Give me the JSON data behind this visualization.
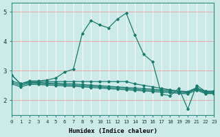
{
  "xlabel": "Humidex (Indice chaleur)",
  "bg_color": "#cceae7",
  "line_color": "#1a7a6e",
  "xlim": [
    0,
    23
  ],
  "ylim": [
    1.5,
    5.3
  ],
  "yticks": [
    2,
    3,
    4,
    5
  ],
  "xticks": [
    0,
    1,
    2,
    3,
    4,
    5,
    6,
    7,
    8,
    9,
    10,
    11,
    12,
    13,
    14,
    15,
    16,
    17,
    18,
    19,
    20,
    21,
    22,
    23
  ],
  "lines": [
    {
      "x": [
        0,
        1,
        2,
        3,
        4,
        5,
        6,
        7,
        8,
        9,
        10,
        11,
        12,
        13,
        14,
        15,
        16,
        17,
        18,
        19,
        20,
        21,
        22,
        23
      ],
      "y": [
        2.85,
        2.55,
        2.65,
        2.65,
        2.68,
        2.75,
        2.95,
        3.05,
        4.25,
        4.7,
        4.55,
        4.45,
        4.75,
        4.95,
        4.2,
        3.55,
        3.3,
        2.2,
        2.15,
        2.4,
        1.7,
        2.5,
        2.3,
        2.3
      ]
    },
    {
      "x": [
        0,
        1,
        2,
        3,
        4,
        5,
        6,
        7,
        8,
        9,
        10,
        11,
        12,
        13,
        14,
        15,
        16,
        17,
        18,
        19,
        20,
        21,
        22,
        23
      ],
      "y": [
        2.85,
        2.55,
        2.63,
        2.63,
        2.63,
        2.63,
        2.63,
        2.63,
        2.63,
        2.63,
        2.63,
        2.63,
        2.63,
        2.63,
        2.55,
        2.5,
        2.45,
        2.4,
        2.35,
        2.3,
        2.25,
        2.4,
        2.3,
        2.3
      ]
    },
    {
      "x": [
        0,
        1,
        2,
        3,
        4,
        5,
        6,
        7,
        8,
        9,
        10,
        11,
        12,
        13,
        14,
        15,
        16,
        17,
        18,
        19,
        20,
        21,
        22,
        23
      ],
      "y": [
        2.65,
        2.55,
        2.6,
        2.6,
        2.58,
        2.58,
        2.56,
        2.55,
        2.53,
        2.51,
        2.49,
        2.47,
        2.45,
        2.43,
        2.41,
        2.39,
        2.37,
        2.35,
        2.33,
        2.31,
        2.29,
        2.42,
        2.28,
        2.28
      ]
    },
    {
      "x": [
        0,
        1,
        2,
        3,
        4,
        5,
        6,
        7,
        8,
        9,
        10,
        11,
        12,
        13,
        14,
        15,
        16,
        17,
        18,
        19,
        20,
        21,
        22,
        23
      ],
      "y": [
        2.6,
        2.5,
        2.57,
        2.57,
        2.55,
        2.54,
        2.52,
        2.51,
        2.49,
        2.47,
        2.45,
        2.43,
        2.41,
        2.39,
        2.37,
        2.35,
        2.33,
        2.31,
        2.29,
        2.27,
        2.25,
        2.38,
        2.25,
        2.25
      ]
    },
    {
      "x": [
        0,
        1,
        2,
        3,
        4,
        5,
        6,
        7,
        8,
        9,
        10,
        11,
        12,
        13,
        14,
        15,
        16,
        17,
        18,
        19,
        20,
        21,
        22,
        23
      ],
      "y": [
        2.55,
        2.45,
        2.53,
        2.53,
        2.51,
        2.5,
        2.48,
        2.47,
        2.45,
        2.43,
        2.41,
        2.39,
        2.37,
        2.35,
        2.33,
        2.31,
        2.29,
        2.27,
        2.25,
        2.23,
        2.21,
        2.34,
        2.22,
        2.22
      ]
    }
  ]
}
